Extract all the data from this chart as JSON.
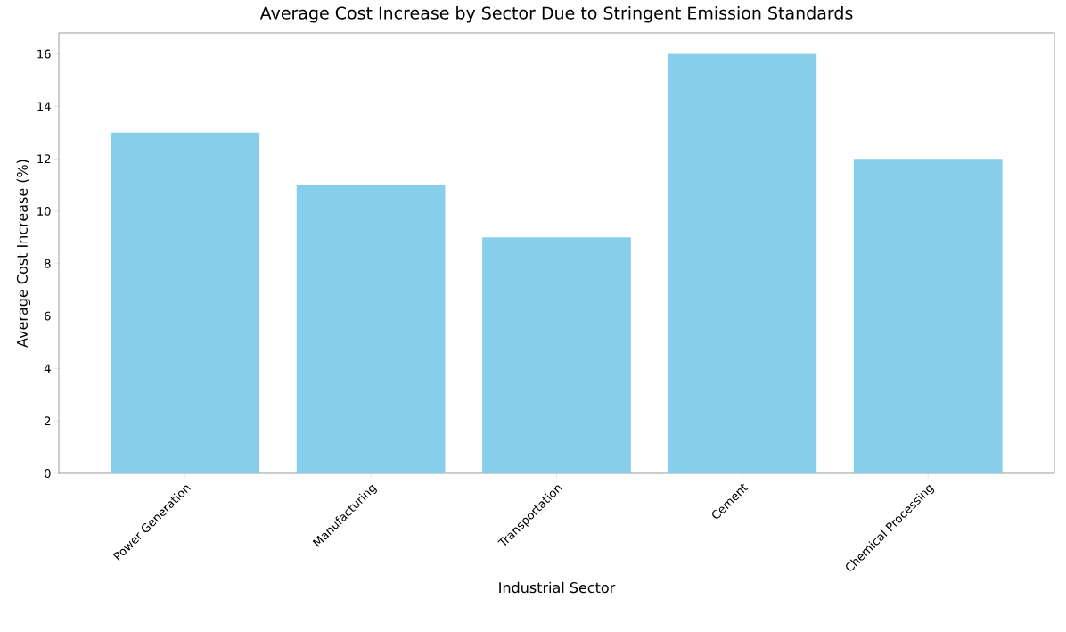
{
  "chart_data": {
    "type": "bar",
    "title": "Average Cost Increase by Sector Due to Stringent Emission Standards",
    "xlabel": "Industrial Sector",
    "ylabel": "Average Cost Increase (%)",
    "categories": [
      "Power Generation",
      "Manufacturing",
      "Transportation",
      "Cement",
      "Chemical Processing"
    ],
    "values": [
      13,
      11,
      9,
      16,
      12
    ],
    "color": "#87ceeb",
    "ylim": [
      0,
      16.8
    ],
    "yticks": [
      0,
      2,
      4,
      6,
      8,
      10,
      12,
      14,
      16
    ]
  }
}
